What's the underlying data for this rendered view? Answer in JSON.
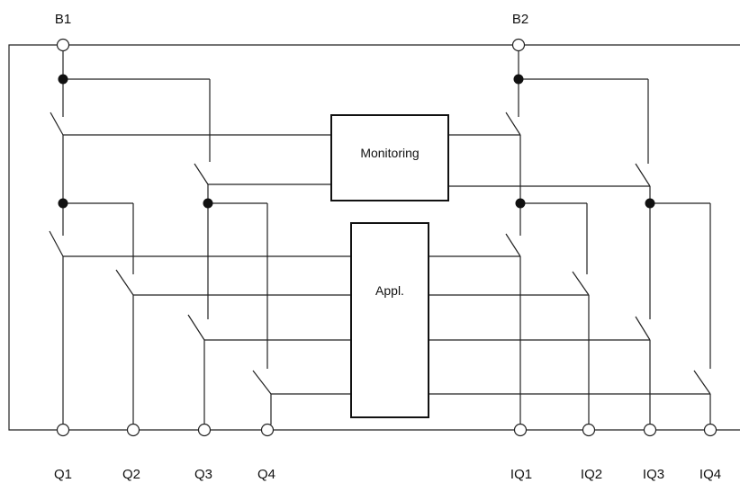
{
  "top_terminals": {
    "b1": "B1",
    "b2": "B2"
  },
  "boxes": {
    "monitoring": "Monitoring",
    "application": "Appl."
  },
  "bottom_terminals": {
    "q1": "Q1",
    "q2": "Q2",
    "q3": "Q3",
    "q4": "Q4",
    "iq1": "IQ1",
    "iq2": "IQ2",
    "iq3": "IQ3",
    "iq4": "IQ4"
  }
}
